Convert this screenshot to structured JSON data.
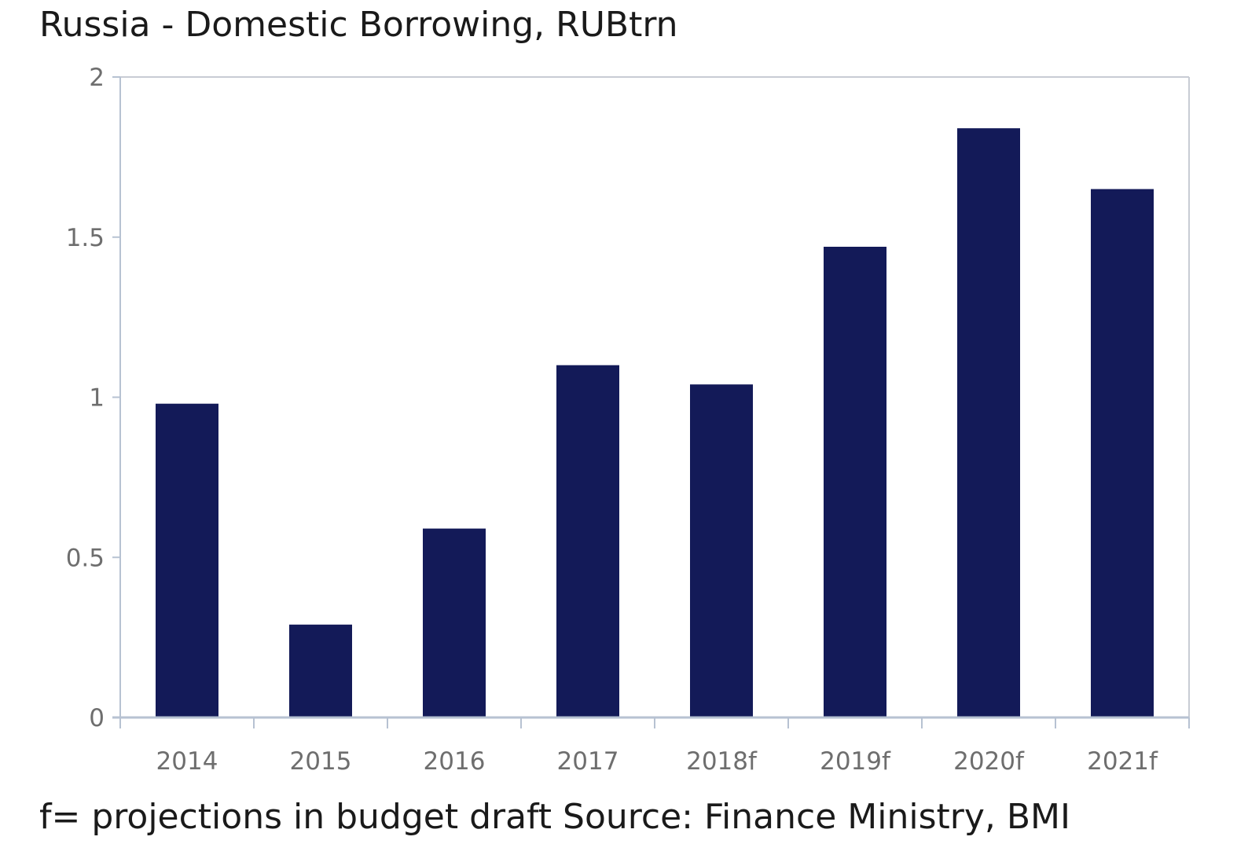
{
  "chart_data": {
    "type": "bar",
    "title": "Russia - Domestic Borrowing, RUBtrn",
    "footnote": "f= projections in budget draft Source: Finance Ministry, BMI",
    "categories": [
      "2014",
      "2015",
      "2016",
      "2017",
      "2018f",
      "2019f",
      "2020f",
      "2021f"
    ],
    "values": [
      0.98,
      0.29,
      0.59,
      1.1,
      1.04,
      1.47,
      1.84,
      1.65
    ],
    "ylim": [
      0,
      2
    ],
    "yticks": [
      0,
      0.5,
      1,
      1.5,
      2
    ],
    "ytick_labels": [
      "0",
      "0.5",
      "1",
      "1.5",
      "2"
    ],
    "xlabel": "",
    "ylabel": "",
    "grid": false,
    "legend": "none",
    "colors": {
      "bar": "#131a58",
      "axis": "#b7c2d2",
      "frame": "#c8ccd4",
      "tick_label": "#6e6e6e"
    }
  }
}
